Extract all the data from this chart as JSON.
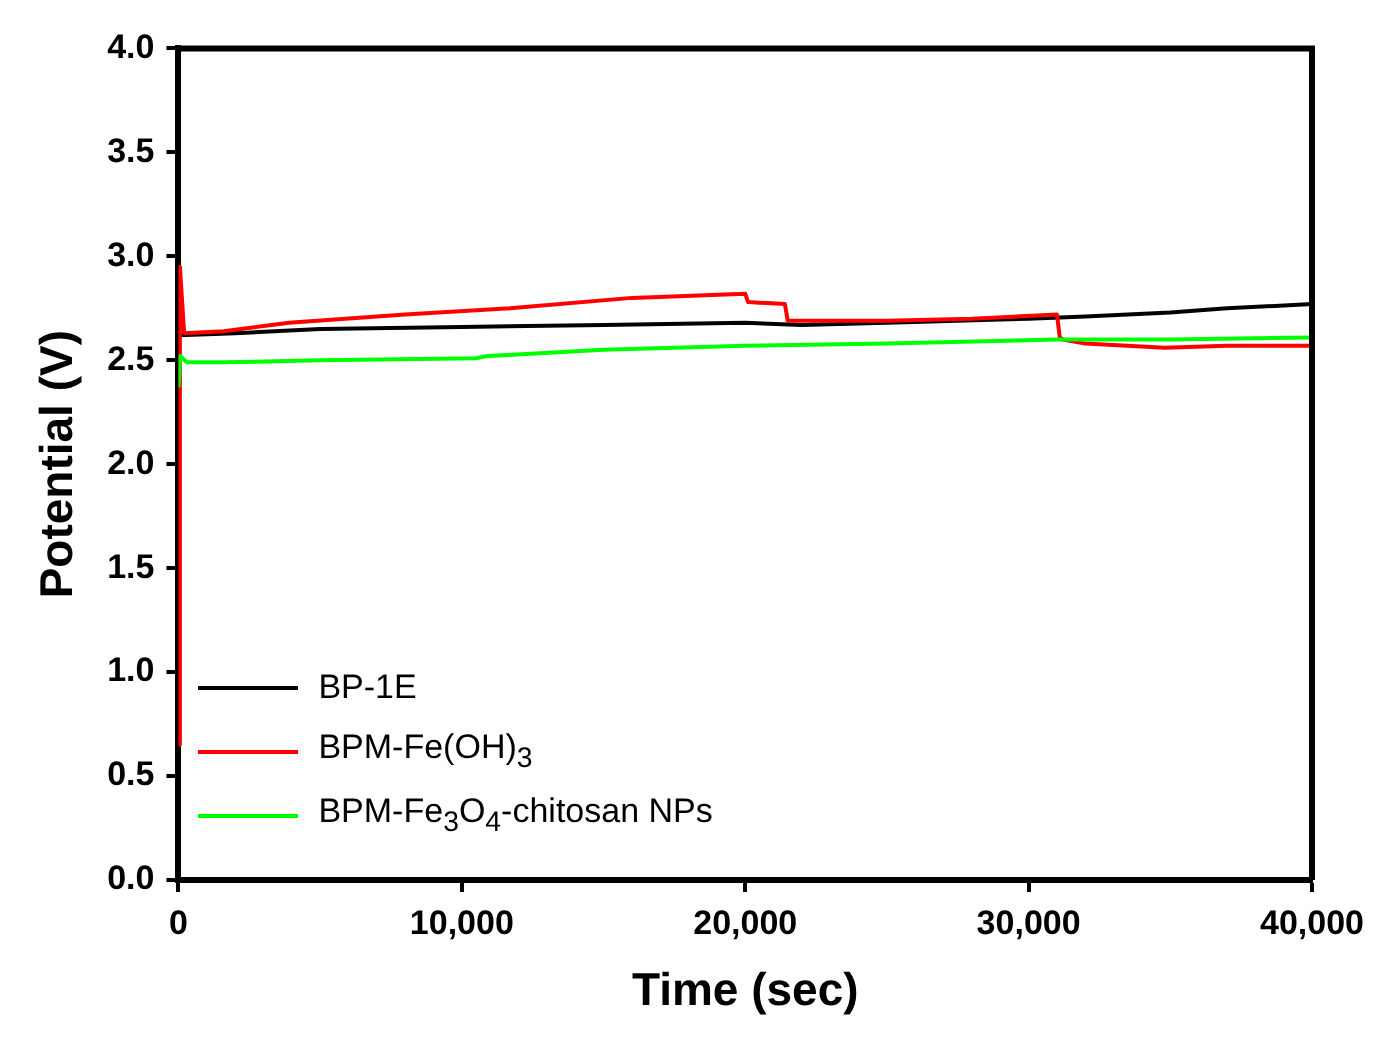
{
  "chart_data": {
    "type": "line",
    "xlabel": "Time (sec)",
    "ylabel": "Potential (V)",
    "xlim": [
      0,
      40000
    ],
    "xticks": [
      {
        "value": 0,
        "label": "0"
      },
      {
        "value": 10000,
        "label": "10,000"
      },
      {
        "value": 20000,
        "label": "20,000"
      },
      {
        "value": 30000,
        "label": "30,000"
      },
      {
        "value": 40000,
        "label": "40,000"
      }
    ],
    "ylim": [
      0,
      4
    ],
    "yticks": [
      {
        "value": 0,
        "label": "0.0"
      },
      0.5,
      {
        "value": 1,
        "label": "1.0"
      },
      1.5,
      {
        "value": 2,
        "label": "2.0"
      },
      2.5,
      {
        "value": 3,
        "label": "3.0"
      },
      3.5,
      {
        "value": 4,
        "label": "4.0"
      }
    ],
    "grid": false,
    "legend": "bottom left",
    "marker": "none",
    "line_style": "solid",
    "series": [
      {
        "name": "BP-1E",
        "color": "#000000",
        "x": [
          0,
          2000,
          5000,
          10000,
          15000,
          20000,
          22000,
          25000,
          30000,
          32000,
          35000,
          37000,
          40000
        ],
        "values": [
          2.62,
          2.63,
          2.65,
          2.66,
          2.67,
          2.68,
          2.67,
          2.68,
          2.7,
          2.71,
          2.73,
          2.75,
          2.77
        ]
      },
      {
        "name": "BPM-Fe(OH)$_{3}$",
        "color": "#ff0000",
        "x": [
          0,
          50,
          200,
          1600,
          3900,
          8000,
          11700,
          16000,
          20000,
          20100,
          21400,
          21500,
          25000,
          28000,
          31000,
          31100,
          31200,
          32000,
          34800,
          37000,
          40000
        ],
        "values": [
          0.65,
          2.95,
          2.63,
          2.64,
          2.68,
          2.72,
          2.75,
          2.8,
          2.82,
          2.78,
          2.77,
          2.69,
          2.69,
          2.7,
          2.72,
          2.61,
          2.6,
          2.58,
          2.56,
          2.57,
          2.57
        ]
      },
      {
        "name": "BPM-Fe$_{3}$O$_{4}$-chitosan NPs",
        "color": "#00ff00",
        "x": [
          0,
          60,
          300,
          1600,
          5000,
          10500,
          10900,
          15000,
          20000,
          25000,
          31000,
          35000,
          40000
        ],
        "values": [
          2.37,
          2.52,
          2.49,
          2.49,
          2.5,
          2.51,
          2.52,
          2.55,
          2.57,
          2.58,
          2.6,
          2.6,
          2.61
        ]
      }
    ]
  }
}
